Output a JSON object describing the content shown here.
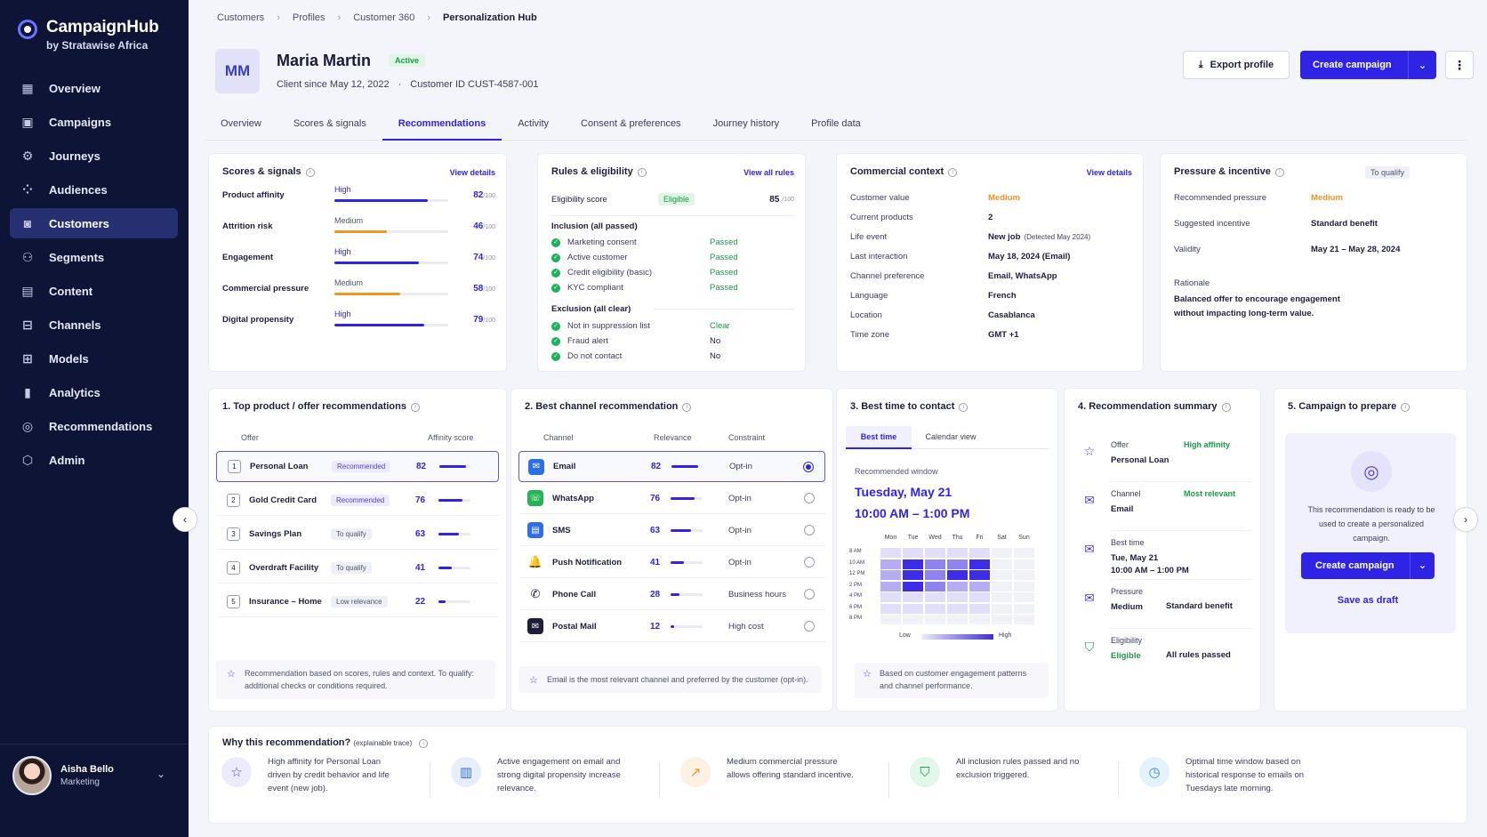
{
  "app": {
    "title": "CampaignHub",
    "subtitle": "by Stratawise Africa"
  },
  "nav": [
    {
      "label": "Overview",
      "icon": "calendar-icon"
    },
    {
      "label": "Campaigns",
      "icon": "campaign-icon"
    },
    {
      "label": "Journeys",
      "icon": "journey-icon"
    },
    {
      "label": "Audiences",
      "icon": "audience-icon"
    },
    {
      "label": "Customers",
      "icon": "customer-icon",
      "active": true
    },
    {
      "label": "Segments",
      "icon": "segment-icon"
    },
    {
      "label": "Content",
      "icon": "content-icon"
    },
    {
      "label": "Channels",
      "icon": "channel-icon"
    },
    {
      "label": "Models",
      "icon": "model-icon"
    },
    {
      "label": "Analytics",
      "icon": "analytics-icon"
    },
    {
      "label": "Recommendations",
      "icon": "recommendation-icon"
    },
    {
      "label": "Admin",
      "icon": "admin-icon"
    }
  ],
  "user": {
    "name": "Aisha Bello",
    "role": "Marketing"
  },
  "breadcrumb": [
    "Customers",
    "Profiles",
    "Customer 360",
    "Personalization Hub"
  ],
  "profile": {
    "initials": "MM",
    "name": "Maria Martin",
    "status": "Active",
    "since": "Client since May 12, 2022",
    "dot": "·",
    "customer_id": "Customer ID CUST-4587-001"
  },
  "actions": {
    "export": "Export profile",
    "create": "Create campaign"
  },
  "tabs": [
    "Overview",
    "Scores & signals",
    "Recommendations",
    "Activity",
    "Consent & preferences",
    "Journey history",
    "Profile data"
  ],
  "scores": {
    "title": "Scores & signals",
    "link": "View details",
    "unit": "/100",
    "items": [
      {
        "label": "Product affinity",
        "level": "High",
        "value": 82,
        "color": "#2f24e6"
      },
      {
        "label": "Attrition risk",
        "level": "Medium",
        "value": 46,
        "color": "#f0951f"
      },
      {
        "label": "Engagement",
        "level": "High",
        "value": 74,
        "color": "#2f24e6"
      },
      {
        "label": "Commercial pressure",
        "level": "Medium",
        "value": 58,
        "color": "#f0951f"
      },
      {
        "label": "Digital propensity",
        "level": "High",
        "value": 79,
        "color": "#2f24e6"
      }
    ]
  },
  "rules": {
    "title": "Rules & eligibility",
    "link": "View all rules",
    "score_label": "Eligibility score",
    "score_tag": "Eligible",
    "score": "85",
    "unit": "/100",
    "inclusion_title": "Inclusion (all passed)",
    "inclusion": [
      {
        "label": "Marketing consent",
        "status": "Passed"
      },
      {
        "label": "Active customer",
        "status": "Passed"
      },
      {
        "label": "Credit eligibility (basic)",
        "status": "Passed"
      },
      {
        "label": "KYC compliant",
        "status": "Passed"
      }
    ],
    "exclusion_title": "Exclusion (all clear)",
    "exclusion": [
      {
        "label": "Not in suppression list",
        "status": "Clear"
      },
      {
        "label": "Fraud alert",
        "status": "No"
      },
      {
        "label": "Do not contact",
        "status": "No"
      }
    ]
  },
  "commercial": {
    "title": "Commercial context",
    "link": "View details",
    "items": [
      {
        "key": "Customer value",
        "val": "Medium"
      },
      {
        "key": "Current products",
        "val": "2"
      },
      {
        "key": "Life event",
        "val": "New job",
        "extra": "(Detected May 2024)"
      },
      {
        "key": "Last interaction",
        "val": "May 18, 2024 (Email)"
      },
      {
        "key": "Channel preference",
        "val": "Email, WhatsApp"
      },
      {
        "key": "Language",
        "val": "French"
      },
      {
        "key": "Location",
        "val": "Casablanca"
      },
      {
        "key": "Time zone",
        "val": "GMT +1"
      }
    ]
  },
  "pressure": {
    "title": "Pressure & incentive",
    "tag": "To qualify",
    "items": [
      {
        "key": "Recommended pressure",
        "val": "Medium"
      },
      {
        "key": "Suggested incentive",
        "val": "Standard benefit"
      },
      {
        "key": "Validity",
        "val": "May 21 – May 28, 2024"
      }
    ],
    "rationale_label": "Rationale",
    "rationale": "Balanced offer to encourage engagement without impacting long-term value."
  },
  "offers": {
    "title": "1. Top product / offer recommendations",
    "col_offer": "Offer",
    "col_score": "Affinity score",
    "items": [
      {
        "n": "1",
        "label": "Personal Loan",
        "tag": "Recommended",
        "score": 82
      },
      {
        "n": "2",
        "label": "Gold Credit Card",
        "tag": "Recommended",
        "score": 76
      },
      {
        "n": "3",
        "label": "Savings Plan",
        "tag": "To qualify",
        "score": 63
      },
      {
        "n": "4",
        "label": "Overdraft Facility",
        "tag": "To qualify",
        "score": 41
      },
      {
        "n": "5",
        "label": "Insurance – Home",
        "tag": "Low relevance",
        "score": 22
      }
    ],
    "note": "Recommendation based on scores, rules and context. To qualify: additional checks or conditions required."
  },
  "channels": {
    "title": "2. Best channel recommendation",
    "col_channel": "Channel",
    "col_rel": "Relevance",
    "col_con": "Constraint",
    "items": [
      {
        "label": "Email",
        "score": 82,
        "constraint": "Opt-in",
        "icon": "✉",
        "color": "#2f6fe6"
      },
      {
        "label": "WhatsApp",
        "score": 76,
        "constraint": "Opt-in",
        "icon": "☏",
        "color": "#22b455"
      },
      {
        "label": "SMS",
        "score": 63,
        "constraint": "Opt-in",
        "icon": "▤",
        "color": "#2f6fe6"
      },
      {
        "label": "Push Notification",
        "score": 41,
        "constraint": "Opt-in",
        "icon": "🔔",
        "color": "#ffffff"
      },
      {
        "label": "Phone Call",
        "score": 28,
        "constraint": "Business hours",
        "icon": "✆",
        "color": "#ffffff"
      },
      {
        "label": "Postal Mail",
        "score": 12,
        "constraint": "High cost",
        "icon": "✉",
        "color": "#1d1f3a"
      }
    ],
    "note": "Email is the most relevant channel and preferred by the customer (opt-in)."
  },
  "best_time": {
    "title": "3. Best time to contact",
    "tab1": "Best time",
    "tab2": "Calendar view",
    "window_label": "Recommended window",
    "day": "Tuesday, May 21",
    "hours": "10:00 AM – 1:00 PM",
    "days": [
      "Mon",
      "Tue",
      "Wed",
      "Thu",
      "Fri",
      "Sat",
      "Sun"
    ],
    "times": [
      "8 AM",
      "10 AM",
      "12 PM",
      "2 PM",
      "4 PM",
      "6 PM",
      "8 PM"
    ],
    "grid": [
      [
        1,
        1,
        1,
        1,
        1,
        0,
        0
      ],
      [
        2,
        4,
        3,
        3,
        4,
        0,
        0
      ],
      [
        2,
        4,
        3,
        4,
        4,
        0,
        0
      ],
      [
        2,
        4,
        3,
        2,
        2,
        0,
        0
      ],
      [
        1,
        1,
        1,
        1,
        1,
        0,
        0
      ],
      [
        1,
        1,
        1,
        1,
        1,
        0,
        0
      ],
      [
        0,
        0,
        0,
        0,
        0,
        0,
        0
      ]
    ],
    "legend_low": "Low",
    "legend_high": "High",
    "note": "Based on customer engagement patterns and channel performance."
  },
  "summary": {
    "title": "4. Recommendation summary",
    "items": [
      {
        "key": "Offer",
        "val": "Personal Loan",
        "tag": "High affinity",
        "icon": "☆"
      },
      {
        "key": "Channel",
        "val": "Email",
        "tag": "Most relevant",
        "icon": "✉"
      },
      {
        "key": "Best time",
        "val": "Tue, May 21",
        "val2": "10:00 AM – 1:00 PM",
        "icon": "✉"
      },
      {
        "key": "Pressure",
        "val": "Medium",
        "side": "Standard benefit",
        "icon": "✉"
      },
      {
        "key": "Eligibility",
        "val": "Eligible",
        "side": "All rules passed",
        "icon": "⛉"
      }
    ]
  },
  "prepare": {
    "title": "5. Campaign to prepare",
    "text": "This recommendation is ready to be used to create a personalized campaign.",
    "create": "Create campaign",
    "draft": "Save as draft"
  },
  "trace": {
    "title": "Why this recommendation?",
    "subtitle": "(explainable trace)",
    "items": [
      {
        "text": "High affinity for Personal Loan driven by credit behavior and life event (new job).",
        "icon": "☆",
        "color": "#4a3fd6",
        "bg": "#ecebfd"
      },
      {
        "text": "Active engagement on email and strong digital propensity increase relevance.",
        "icon": "▥",
        "color": "#2f6fe6",
        "bg": "#e7effd"
      },
      {
        "text": "Medium commercial pressure allows offering standard incentive.",
        "icon": "↗",
        "color": "#f0951f",
        "bg": "#fdf1e3"
      },
      {
        "text": "All inclusion rules passed and no exclusion triggered.",
        "icon": "⛉",
        "color": "#1c9a4a",
        "bg": "#e3f6ea"
      },
      {
        "text": "Optimal time window based on historical response to emails on Tuesdays late morning.",
        "icon": "◷",
        "color": "#2f8fd6",
        "bg": "#e4f2fb"
      }
    ]
  }
}
